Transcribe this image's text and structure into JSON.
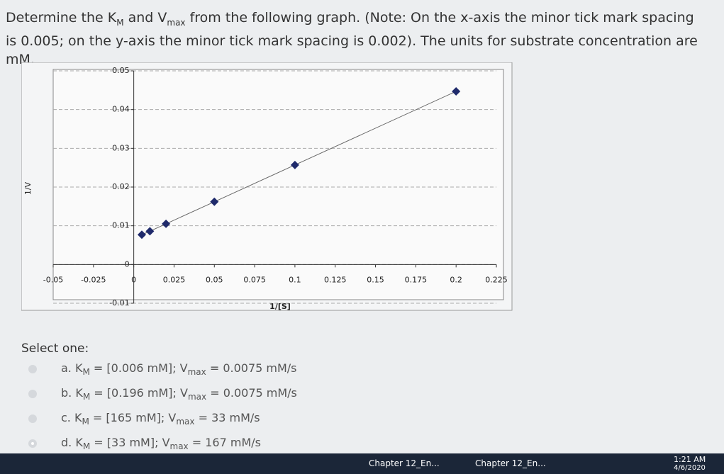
{
  "question": [
    "Determine the K",
    "M",
    " and V",
    "max",
    " from the following graph. (Note: On the x-axis the minor tick mark spacing is 0.005; on the y-axis the minor tick mark spacing is 0.002). The units for substrate concentration are mM."
  ],
  "chart_data": {
    "type": "scatter",
    "x_label": "1/[S]",
    "y_label": "1/V",
    "x": [
      0.005,
      0.01,
      0.02,
      0.05,
      0.1,
      0.2
    ],
    "values": [
      0.0077,
      0.0086,
      0.0105,
      0.0162,
      0.0257,
      0.0447
    ],
    "color": "#1f2a6b",
    "line_color": "#666666",
    "xlim": [
      -0.05,
      0.225
    ],
    "xticks": [
      -0.05,
      -0.025,
      0,
      0.025,
      0.05,
      0.075,
      0.1,
      0.125,
      0.15,
      0.175,
      0.2,
      0.225
    ],
    "ylim": [
      -0.01,
      0.05
    ],
    "yticks": [
      -0.01,
      0,
      0.01,
      0.02,
      0.03,
      0.04,
      0.05
    ],
    "grid": true
  },
  "select_label": "Select one:",
  "options": [
    [
      "a. K",
      "M",
      " = [0.006 mM]; V",
      "max",
      " = 0.0075 mM/s"
    ],
    [
      "b. K",
      "M",
      " = [0.196 mM]; V",
      "max",
      " = 0.0075 mM/s"
    ],
    [
      "c. K",
      "M",
      " = [165 mM]; V",
      "max",
      " = 33 mM/s"
    ],
    [
      "d. K",
      "M",
      " = [33 mM]; V",
      "max",
      " = 167 mM/s"
    ]
  ],
  "selected": 3,
  "taskbar": {
    "items": [
      "Chapter 12_En...",
      "Chapter 12_En..."
    ],
    "time": "1:21 AM",
    "date": "4/6/2020"
  }
}
